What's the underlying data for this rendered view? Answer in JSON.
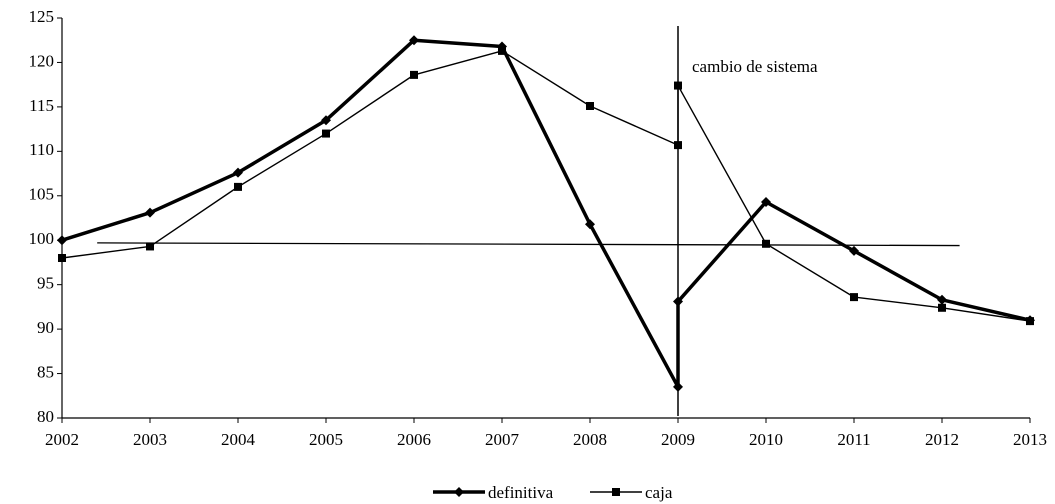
{
  "chart_data": {
    "type": "line",
    "x": [
      2002,
      2003,
      2004,
      2005,
      2006,
      2007,
      2008,
      2009,
      2009,
      2010,
      2011,
      2012,
      2013
    ],
    "series": [
      {
        "name": "definitiva",
        "color": "#000000",
        "marker": "diamond",
        "width": 3.5,
        "values": [
          100,
          103.1,
          107.6,
          113.5,
          122.5,
          121.8,
          101.8,
          83.5,
          93.1,
          104.3,
          98.8,
          93.3,
          91.0
        ]
      },
      {
        "name": "caja",
        "color": "#000000",
        "marker": "square",
        "width": 1.4,
        "values": [
          98.0,
          99.3,
          106.0,
          112.0,
          118.6,
          121.3,
          115.1,
          110.7,
          117.4,
          99.6,
          93.6,
          92.4,
          90.9
        ]
      }
    ],
    "trendline": {
      "x": [
        2002.4,
        2012.2
      ],
      "values": [
        99.7,
        99.4
      ]
    },
    "annotations": [
      {
        "text": "cambio de sistema",
        "x": 2009
      }
    ],
    "xlim": [
      2002,
      2013
    ],
    "xticks": [
      2002,
      2003,
      2004,
      2005,
      2006,
      2007,
      2008,
      2009,
      2010,
      2011,
      2012,
      2013
    ],
    "ylim": [
      80,
      125
    ],
    "yticks": [
      80,
      85,
      90,
      95,
      100,
      105,
      110,
      115,
      120,
      125
    ],
    "grid": false,
    "legend": "bottom"
  }
}
